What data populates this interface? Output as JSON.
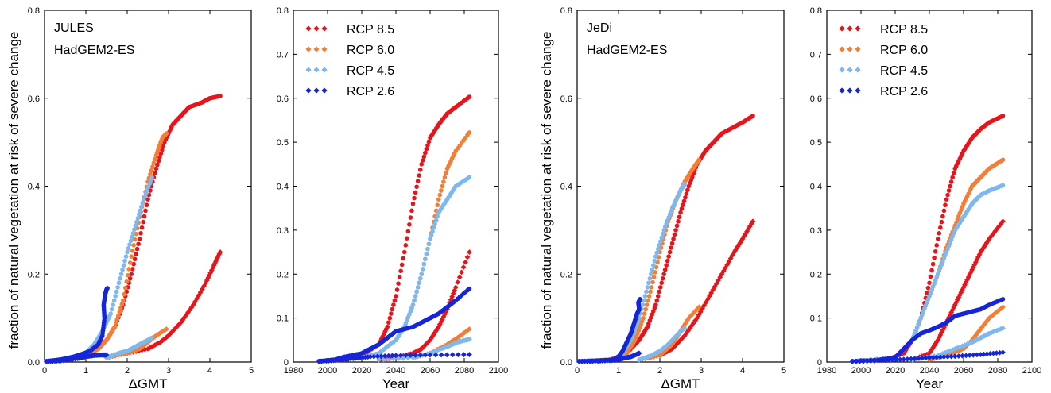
{
  "colors": {
    "rcp85": "#e8141a",
    "rcp60": "#f27f35",
    "rcp45": "#7db8ee",
    "rcp26": "#1525d8"
  },
  "legend_labels": [
    "RCP 8.5",
    "RCP 6.0",
    "RCP 4.5",
    "RCP 2.6"
  ],
  "chart_data": [
    {
      "type": "scatter",
      "panel": "jules-gmt",
      "title": "",
      "annotations": [
        "JULES",
        "HadGEM2-ES"
      ],
      "xlabel": "ΔGMT",
      "ylabel": "fraction of natural vegetation at risk of severe change",
      "xlim": [
        0,
        5
      ],
      "ylim": [
        0,
        0.8
      ],
      "xticks": [
        "0",
        "1",
        "2",
        "3",
        "4",
        "5"
      ],
      "yticks": [
        "0.0",
        "0.2",
        "0.4",
        "0.6",
        "0.8"
      ],
      "legend": false,
      "series": [
        {
          "key": "rcp85_a",
          "color_key": "rcp85",
          "x": [
            0.05,
            0.5,
            1.0,
            1.3,
            1.5,
            1.7,
            1.9,
            2.1,
            2.3,
            2.5,
            2.7,
            2.9,
            3.1,
            3.3,
            3.5,
            3.8,
            4.0,
            4.25
          ],
          "y": [
            0.002,
            0.005,
            0.015,
            0.03,
            0.05,
            0.08,
            0.13,
            0.2,
            0.28,
            0.37,
            0.44,
            0.5,
            0.54,
            0.56,
            0.58,
            0.59,
            0.6,
            0.605
          ]
        },
        {
          "key": "rcp85_b",
          "color_key": "rcp85",
          "x": [
            1.5,
            2.0,
            2.5,
            2.8,
            3.0,
            3.3,
            3.6,
            3.9,
            4.1,
            4.25
          ],
          "y": [
            0.01,
            0.02,
            0.03,
            0.045,
            0.06,
            0.09,
            0.13,
            0.18,
            0.22,
            0.25
          ]
        },
        {
          "key": "rcp60_a",
          "color_key": "rcp60",
          "x": [
            0.05,
            0.5,
            1.0,
            1.3,
            1.5,
            1.7,
            1.9,
            2.1,
            2.3,
            2.5,
            2.7,
            2.85,
            2.95
          ],
          "y": [
            0.002,
            0.005,
            0.015,
            0.03,
            0.05,
            0.08,
            0.14,
            0.24,
            0.33,
            0.41,
            0.47,
            0.51,
            0.52
          ]
        },
        {
          "key": "rcp60_b",
          "color_key": "rcp60",
          "x": [
            1.5,
            2.0,
            2.3,
            2.5,
            2.7,
            2.95
          ],
          "y": [
            0.01,
            0.02,
            0.03,
            0.045,
            0.06,
            0.075
          ]
        },
        {
          "key": "rcp45_a",
          "color_key": "rcp45",
          "x": [
            0.05,
            0.5,
            1.0,
            1.2,
            1.4,
            1.6,
            1.8,
            2.0,
            2.2,
            2.4,
            2.6
          ],
          "y": [
            0.002,
            0.006,
            0.02,
            0.04,
            0.07,
            0.11,
            0.18,
            0.25,
            0.31,
            0.37,
            0.42
          ]
        },
        {
          "key": "rcp45_b",
          "color_key": "rcp45",
          "x": [
            1.5,
            1.8,
            2.0,
            2.2,
            2.4,
            2.6
          ],
          "y": [
            0.01,
            0.02,
            0.025,
            0.035,
            0.045,
            0.055
          ]
        },
        {
          "key": "rcp26_a",
          "color_key": "rcp26",
          "x": [
            0.05,
            0.4,
            0.7,
            0.9,
            1.1,
            1.3,
            1.4,
            1.45,
            1.43,
            1.47,
            1.5,
            1.52
          ],
          "y": [
            0.002,
            0.006,
            0.012,
            0.018,
            0.025,
            0.04,
            0.06,
            0.1,
            0.13,
            0.155,
            0.165,
            0.168
          ]
        },
        {
          "key": "rcp26_b",
          "color_key": "rcp26",
          "x": [
            0.05,
            0.4,
            0.8,
            1.0,
            1.2,
            1.4,
            1.5
          ],
          "y": [
            0.001,
            0.003,
            0.008,
            0.012,
            0.015,
            0.016,
            0.016
          ]
        }
      ]
    },
    {
      "type": "scatter",
      "panel": "jules-year",
      "title": "",
      "annotations": [],
      "xlabel": "Year",
      "ylabel": "",
      "xlim": [
        1980,
        2100
      ],
      "ylim": [
        0,
        0.8
      ],
      "xticks": [
        "1980",
        "2000",
        "2020",
        "2040",
        "2060",
        "2080",
        "2100"
      ],
      "yticks": [
        "0",
        "0.1",
        "0.2",
        "0.3",
        "0.4",
        "0.5",
        "0.6",
        "0.7",
        "0.8"
      ],
      "legend": true,
      "series": [
        {
          "key": "rcp85_a",
          "color_key": "rcp85",
          "x": [
            1995,
            2010,
            2020,
            2030,
            2035,
            2040,
            2045,
            2050,
            2055,
            2060,
            2065,
            2070,
            2075,
            2083
          ],
          "y": [
            0.002,
            0.005,
            0.015,
            0.04,
            0.08,
            0.15,
            0.25,
            0.36,
            0.45,
            0.51,
            0.54,
            0.565,
            0.58,
            0.603
          ]
        },
        {
          "key": "rcp85_b",
          "color_key": "rcp85",
          "x": [
            2030,
            2040,
            2050,
            2055,
            2060,
            2065,
            2070,
            2075,
            2083
          ],
          "y": [
            0.005,
            0.01,
            0.02,
            0.03,
            0.05,
            0.08,
            0.12,
            0.17,
            0.25
          ]
        },
        {
          "key": "rcp60_a",
          "color_key": "rcp60",
          "x": [
            1995,
            2020,
            2030,
            2040,
            2045,
            2050,
            2055,
            2060,
            2065,
            2070,
            2075,
            2083
          ],
          "y": [
            0.002,
            0.01,
            0.02,
            0.05,
            0.08,
            0.13,
            0.2,
            0.28,
            0.37,
            0.44,
            0.48,
            0.522
          ]
        },
        {
          "key": "rcp60_b",
          "color_key": "rcp60",
          "x": [
            2030,
            2050,
            2060,
            2070,
            2076,
            2083
          ],
          "y": [
            0.005,
            0.01,
            0.02,
            0.04,
            0.055,
            0.075
          ]
        },
        {
          "key": "rcp45_a",
          "color_key": "rcp45",
          "x": [
            1995,
            2020,
            2030,
            2040,
            2045,
            2050,
            2055,
            2060,
            2065,
            2070,
            2075,
            2083
          ],
          "y": [
            0.002,
            0.01,
            0.02,
            0.05,
            0.08,
            0.13,
            0.2,
            0.28,
            0.34,
            0.37,
            0.4,
            0.42
          ]
        },
        {
          "key": "rcp45_b",
          "color_key": "rcp45",
          "x": [
            2030,
            2050,
            2060,
            2070,
            2076,
            2083
          ],
          "y": [
            0.005,
            0.01,
            0.02,
            0.035,
            0.045,
            0.052
          ]
        },
        {
          "key": "rcp26_a",
          "color_key": "rcp26",
          "x": [
            1995,
            2005,
            2010,
            2020,
            2025,
            2030,
            2035,
            2040,
            2045,
            2050,
            2055,
            2060,
            2065,
            2070,
            2075,
            2083
          ],
          "y": [
            0.002,
            0.006,
            0.012,
            0.02,
            0.03,
            0.04,
            0.055,
            0.07,
            0.075,
            0.08,
            0.09,
            0.1,
            0.11,
            0.125,
            0.14,
            0.167
          ]
        },
        {
          "key": "rcp26_b",
          "color_key": "rcp26",
          "x": [
            1995,
            2005,
            2015,
            2025,
            2040,
            2060,
            2083
          ],
          "y": [
            0.001,
            0.004,
            0.008,
            0.012,
            0.015,
            0.016,
            0.017
          ]
        }
      ]
    },
    {
      "type": "scatter",
      "panel": "jedi-gmt",
      "title": "",
      "annotations": [
        "JeDi",
        "HadGEM2-ES"
      ],
      "xlabel": "ΔGMT",
      "ylabel": "fraction of natural vegetation at risk of severe change",
      "xlim": [
        0,
        5
      ],
      "ylim": [
        0,
        0.8
      ],
      "xticks": [
        "0",
        "1",
        "2",
        "3",
        "4",
        "5"
      ],
      "yticks": [
        "0.0",
        "0.2",
        "0.4",
        "0.6",
        "0.8"
      ],
      "legend": false,
      "series": [
        {
          "key": "rcp85_a",
          "color_key": "rcp85",
          "x": [
            0.05,
            0.8,
            1.2,
            1.5,
            1.7,
            1.9,
            2.1,
            2.3,
            2.5,
            2.7,
            2.9,
            3.1,
            3.3,
            3.5,
            3.8,
            4.0,
            4.25
          ],
          "y": [
            0.002,
            0.005,
            0.02,
            0.05,
            0.08,
            0.13,
            0.2,
            0.27,
            0.34,
            0.4,
            0.45,
            0.48,
            0.5,
            0.52,
            0.535,
            0.545,
            0.56
          ]
        },
        {
          "key": "rcp85_b",
          "color_key": "rcp85",
          "x": [
            1.5,
            2.0,
            2.3,
            2.6,
            2.9,
            3.2,
            3.5,
            3.8,
            4.0,
            4.25
          ],
          "y": [
            0.005,
            0.015,
            0.03,
            0.06,
            0.1,
            0.15,
            0.2,
            0.25,
            0.28,
            0.32
          ]
        },
        {
          "key": "rcp60_a",
          "color_key": "rcp60",
          "x": [
            0.05,
            0.9,
            1.2,
            1.4,
            1.6,
            1.8,
            2.0,
            2.2,
            2.4,
            2.6,
            2.8,
            2.95
          ],
          "y": [
            0.002,
            0.006,
            0.02,
            0.05,
            0.1,
            0.17,
            0.25,
            0.32,
            0.37,
            0.41,
            0.44,
            0.46
          ]
        },
        {
          "key": "rcp60_b",
          "color_key": "rcp60",
          "x": [
            1.5,
            2.0,
            2.3,
            2.5,
            2.7,
            2.95
          ],
          "y": [
            0.005,
            0.015,
            0.04,
            0.07,
            0.1,
            0.125
          ]
        },
        {
          "key": "rcp45_a",
          "color_key": "rcp45",
          "x": [
            0.05,
            0.9,
            1.1,
            1.3,
            1.5,
            1.7,
            1.9,
            2.1,
            2.3,
            2.5,
            2.6
          ],
          "y": [
            0.002,
            0.006,
            0.02,
            0.05,
            0.1,
            0.17,
            0.24,
            0.3,
            0.35,
            0.39,
            0.405
          ]
        },
        {
          "key": "rcp45_b",
          "color_key": "rcp45",
          "x": [
            1.5,
            1.8,
            2.0,
            2.2,
            2.4,
            2.6
          ],
          "y": [
            0.005,
            0.015,
            0.025,
            0.04,
            0.06,
            0.077
          ]
        },
        {
          "key": "rcp26_a",
          "color_key": "rcp26",
          "x": [
            0.05,
            0.5,
            0.9,
            1.0,
            1.1,
            1.2,
            1.3,
            1.35,
            1.4,
            1.45,
            1.5,
            1.48,
            1.52
          ],
          "y": [
            0.002,
            0.003,
            0.006,
            0.012,
            0.025,
            0.045,
            0.065,
            0.08,
            0.095,
            0.11,
            0.12,
            0.135,
            0.143
          ]
        },
        {
          "key": "rcp26_b",
          "color_key": "rcp26",
          "x": [
            0.05,
            0.5,
            0.9,
            1.1,
            1.3,
            1.45,
            1.5
          ],
          "y": [
            0.001,
            0.002,
            0.004,
            0.008,
            0.012,
            0.018,
            0.02
          ]
        }
      ]
    },
    {
      "type": "scatter",
      "panel": "jedi-year",
      "title": "",
      "annotations": [],
      "xlabel": "Year",
      "ylabel": "",
      "xlim": [
        1980,
        2100
      ],
      "ylim": [
        0,
        0.8
      ],
      "xticks": [
        "1980",
        "2000",
        "2020",
        "2040",
        "2060",
        "2080",
        "2100"
      ],
      "yticks": [
        "0",
        "0.1",
        "0.2",
        "0.3",
        "0.4",
        "0.5",
        "0.6",
        "0.7",
        "0.8"
      ],
      "legend": true,
      "series": [
        {
          "key": "rcp85_a",
          "color_key": "rcp85",
          "x": [
            1995,
            2015,
            2025,
            2030,
            2035,
            2040,
            2045,
            2050,
            2055,
            2060,
            2065,
            2070,
            2075,
            2083
          ],
          "y": [
            0.002,
            0.005,
            0.02,
            0.05,
            0.1,
            0.18,
            0.28,
            0.37,
            0.44,
            0.48,
            0.51,
            0.53,
            0.545,
            0.56
          ]
        },
        {
          "key": "rcp85_b",
          "color_key": "rcp85",
          "x": [
            2030,
            2040,
            2045,
            2050,
            2055,
            2060,
            2065,
            2070,
            2075,
            2083
          ],
          "y": [
            0.005,
            0.02,
            0.05,
            0.09,
            0.13,
            0.17,
            0.21,
            0.25,
            0.28,
            0.32
          ]
        },
        {
          "key": "rcp60_a",
          "color_key": "rcp60",
          "x": [
            1995,
            2020,
            2030,
            2035,
            2040,
            2045,
            2050,
            2055,
            2060,
            2065,
            2070,
            2075,
            2083
          ],
          "y": [
            0.002,
            0.01,
            0.05,
            0.1,
            0.15,
            0.2,
            0.26,
            0.31,
            0.36,
            0.4,
            0.42,
            0.44,
            0.46
          ]
        },
        {
          "key": "rcp60_b",
          "color_key": "rcp60",
          "x": [
            2040,
            2050,
            2060,
            2065,
            2070,
            2075,
            2083
          ],
          "y": [
            0.005,
            0.015,
            0.03,
            0.05,
            0.075,
            0.1,
            0.125
          ]
        },
        {
          "key": "rcp45_a",
          "color_key": "rcp45",
          "x": [
            1995,
            2020,
            2030,
            2035,
            2040,
            2045,
            2050,
            2055,
            2060,
            2065,
            2070,
            2075,
            2083
          ],
          "y": [
            0.002,
            0.01,
            0.05,
            0.1,
            0.15,
            0.2,
            0.25,
            0.3,
            0.33,
            0.36,
            0.38,
            0.39,
            0.402
          ]
        },
        {
          "key": "rcp45_b",
          "color_key": "rcp45",
          "x": [
            2030,
            2045,
            2055,
            2065,
            2070,
            2075,
            2083
          ],
          "y": [
            0.005,
            0.015,
            0.03,
            0.045,
            0.055,
            0.065,
            0.077
          ]
        },
        {
          "key": "rcp26_a",
          "color_key": "rcp26",
          "x": [
            1995,
            2010,
            2020,
            2025,
            2030,
            2035,
            2040,
            2045,
            2050,
            2055,
            2060,
            2065,
            2070,
            2075,
            2083
          ],
          "y": [
            0.002,
            0.005,
            0.01,
            0.03,
            0.05,
            0.065,
            0.072,
            0.08,
            0.09,
            0.105,
            0.11,
            0.115,
            0.12,
            0.13,
            0.143
          ]
        },
        {
          "key": "rcp26_b",
          "color_key": "rcp26",
          "x": [
            1995,
            2010,
            2025,
            2040,
            2055,
            2070,
            2083
          ],
          "y": [
            0.001,
            0.003,
            0.006,
            0.01,
            0.013,
            0.017,
            0.022
          ]
        }
      ]
    }
  ]
}
